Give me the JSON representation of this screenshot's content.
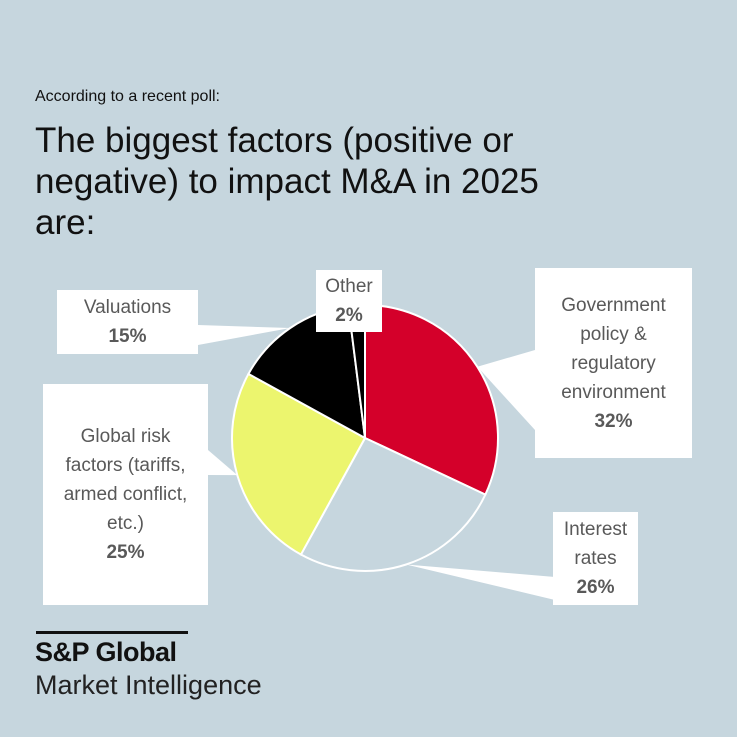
{
  "intro": "According to a recent poll:",
  "title": "The biggest factors (positive or negative) to impact M&A in 2025 are:",
  "logo": {
    "brand": "S&P Global",
    "sub": "Market Intelligence"
  },
  "chart_data": {
    "type": "pie",
    "title": "The biggest factors (positive or negative) to impact M&A in 2025 are:",
    "start": "12 o'clock, clockwise",
    "slices": [
      {
        "label": "Government policy & regulatory environment",
        "value": 32,
        "display": "32%",
        "color": "#d4002a"
      },
      {
        "label": "Interest rates",
        "value": 26,
        "display": "26%",
        "color": "#c6d6de"
      },
      {
        "label": "Global risk factors (tariffs, armed conflict, etc.)",
        "value": 25,
        "display": "25%",
        "color": "#ecf56e"
      },
      {
        "label": "Valuations",
        "value": 15,
        "display": "15%",
        "color": "#000000"
      },
      {
        "label": "Other",
        "value": 2,
        "display": "2%",
        "color": "#000000"
      }
    ]
  },
  "callouts": {
    "gov": {
      "lines": [
        "Government",
        "policy &",
        "regulatory",
        "environment"
      ],
      "pct": "32%"
    },
    "interest": {
      "lines": [
        "Interest",
        "rates"
      ],
      "pct": "26%"
    },
    "global": {
      "lines": [
        "Global risk",
        "factors (tariffs,",
        "armed conflict,",
        "etc.)"
      ],
      "pct": "25%"
    },
    "valuations": {
      "lines": [
        "Valuations"
      ],
      "pct": "15%"
    },
    "other": {
      "lines": [
        "Other"
      ],
      "pct": "2%"
    }
  }
}
